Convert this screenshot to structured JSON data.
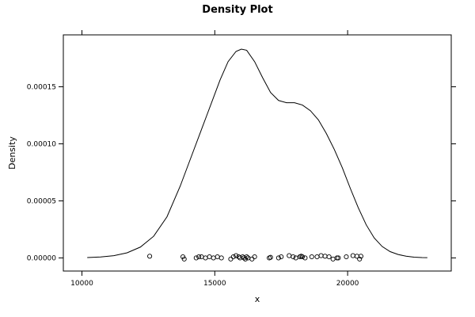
{
  "chart_data": {
    "type": "line",
    "title": "Density Plot",
    "xlabel": "x",
    "ylabel": "Density",
    "xlim": [
      9300,
      23900
    ],
    "ylim": [
      -1.15e-05,
      0.0001955
    ],
    "grid": false,
    "legend": "none",
    "x_ticks": [
      10000,
      15000,
      20000
    ],
    "x_tick_labels": [
      "10000",
      "15000",
      "20000"
    ],
    "y_ticks": [
      0,
      5e-05,
      0.0001,
      0.00015
    ],
    "y_tick_labels": [
      "0.00000",
      "0.00005",
      "0.00010",
      "0.00015"
    ],
    "density_curve": {
      "x": [
        10200,
        10700,
        11200,
        11700,
        12200,
        12700,
        13200,
        13700,
        14200,
        14700,
        15200,
        15500,
        15800,
        16000,
        16200,
        16500,
        16800,
        17100,
        17400,
        17700,
        18000,
        18300,
        18600,
        18900,
        19200,
        19500,
        19800,
        20100,
        20400,
        20700,
        21000,
        21300,
        21600,
        21900,
        22200,
        22500,
        22800,
        23000
      ],
      "y": [
        3e-07,
        8e-07,
        2e-06,
        4.5e-06,
        9.5e-06,
        1.9e-05,
        3.6e-05,
        6.3e-05,
        9.4e-05,
        0.000125,
        0.000156,
        0.000172,
        0.000181,
        0.000183,
        0.000182,
        0.000172,
        0.000158,
        0.000145,
        0.000138,
        0.000136,
        0.000136,
        0.000134,
        0.000129,
        0.000121,
        0.000109,
        9.5e-05,
        7.9e-05,
        6.1e-05,
        4.4e-05,
        2.9e-05,
        1.75e-05,
        1e-05,
        5.5e-06,
        3e-06,
        1.5e-06,
        7e-07,
        3e-07,
        2e-07
      ]
    },
    "rug_points": {
      "x": [
        12550,
        13800,
        13850,
        14300,
        14400,
        14500,
        14650,
        14800,
        14950,
        15100,
        15250,
        15600,
        15700,
        15800,
        15900,
        15950,
        16050,
        16100,
        16150,
        16200,
        16250,
        16400,
        16500,
        17050,
        17100,
        17400,
        17500,
        17800,
        17950,
        18050,
        18200,
        18250,
        18300,
        18400,
        18650,
        18850,
        19000,
        19150,
        19300,
        19450,
        19600,
        19650,
        19950,
        20200,
        20350,
        20450,
        20500
      ],
      "y": [
        1.5e-06,
        1e-06,
        -1e-06,
        0,
        1e-06,
        1e-06,
        0,
        1e-06,
        0,
        1e-06,
        0,
        -1e-06,
        1e-06,
        2e-06,
        1e-06,
        0,
        1e-06,
        0,
        -1e-06,
        1e-06,
        0,
        -1e-06,
        1e-06,
        0,
        5e-07,
        0,
        1e-06,
        2e-06,
        1e-06,
        0,
        1e-06,
        1.5e-06,
        1e-06,
        0,
        1e-06,
        1e-06,
        2e-06,
        1.5e-06,
        1e-06,
        -1e-06,
        0,
        0,
        1e-06,
        2e-06,
        1.5e-06,
        -1e-06,
        1.5e-06
      ]
    }
  }
}
